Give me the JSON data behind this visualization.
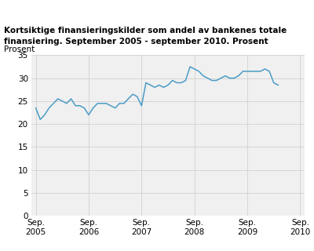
{
  "title_line1": "Kortsiktige finansieringskilder som andel av bankenes totale",
  "title_line2": "finansiering. September 2005 - september 2010. Prosent",
  "ylabel": "Prosent",
  "line_color": "#4a9cc7",
  "background_color": "#ffffff",
  "plot_bg_color": "#f0f0f0",
  "grid_color": "#cccccc",
  "ylim": [
    0,
    35
  ],
  "yticks": [
    0,
    5,
    10,
    15,
    20,
    25,
    30,
    35
  ],
  "xtick_labels": [
    "Sep.\n2005",
    "Sep.\n2006",
    "Sep.\n2007",
    "Sep.\n2008",
    "Sep.\n2009",
    "Sep.\n2010"
  ],
  "x_tick_positions": [
    0,
    12,
    24,
    36,
    48,
    60
  ],
  "values": [
    23.5,
    21.0,
    22.0,
    23.5,
    24.5,
    25.5,
    25.0,
    24.5,
    25.5,
    24.0,
    24.0,
    23.5,
    22.0,
    23.5,
    24.5,
    24.5,
    24.5,
    24.0,
    23.5,
    24.5,
    24.5,
    25.5,
    26.5,
    26.0,
    24.0,
    29.0,
    28.5,
    28.0,
    28.5,
    28.0,
    28.5,
    29.5,
    29.0,
    29.0,
    29.5,
    32.5,
    32.0,
    31.5,
    30.5,
    30.0,
    29.5,
    29.5,
    30.0,
    30.5,
    30.0,
    30.0,
    30.5,
    31.5,
    31.5,
    31.5,
    31.5,
    31.5,
    32.0,
    31.5,
    29.0,
    28.5
  ]
}
